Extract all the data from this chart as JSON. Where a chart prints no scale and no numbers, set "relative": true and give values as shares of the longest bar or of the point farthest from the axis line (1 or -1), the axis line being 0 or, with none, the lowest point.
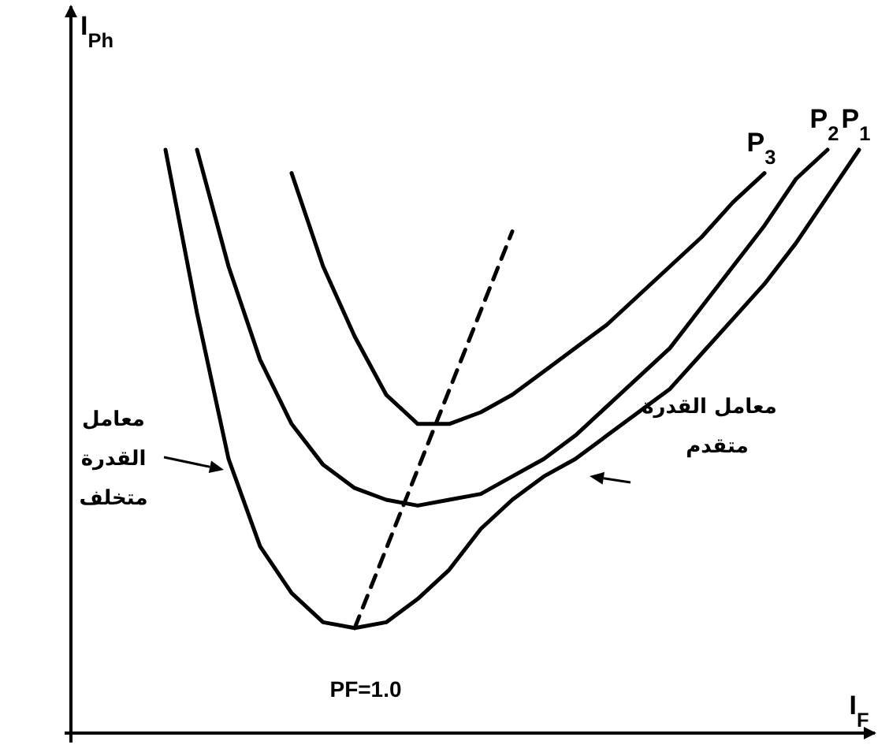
{
  "chart_data": {
    "type": "line",
    "relative": true,
    "marker": "none",
    "xlabel": "I$_{F}$",
    "ylabel": "I$_{Ph}$",
    "categories": [
      null,
      null,
      null,
      null,
      null,
      null,
      null,
      null,
      null,
      null,
      null,
      null,
      null,
      null,
      null,
      null,
      null,
      null,
      null,
      null,
      null,
      null,
      null,
      null,
      null,
      null
    ],
    "series": [
      {
        "name": "P$_{1}$",
        "color": "#000000",
        "line_style": "solid",
        "values": [
          null,
          null,
          null,
          1.0,
          0.72,
          0.47,
          0.32,
          0.24,
          0.19,
          0.18,
          0.19,
          0.23,
          0.28,
          0.35,
          0.4,
          0.44,
          0.47,
          0.51,
          0.55,
          0.59,
          0.65,
          0.71,
          0.77,
          0.84,
          0.92,
          1.0
        ]
      },
      {
        "name": "P$_{2}$",
        "color": "#000000",
        "line_style": "solid",
        "values": [
          null,
          null,
          null,
          null,
          1.0,
          0.8,
          0.64,
          0.53,
          0.46,
          0.42,
          0.4,
          0.39,
          0.4,
          0.41,
          0.44,
          0.47,
          0.51,
          0.56,
          0.61,
          0.66,
          0.73,
          0.8,
          0.87,
          0.95,
          1.0,
          null
        ]
      },
      {
        "name": "P$_{3}$",
        "color": "#000000",
        "line_style": "solid",
        "values": [
          null,
          null,
          null,
          null,
          null,
          null,
          null,
          0.96,
          0.8,
          0.68,
          0.58,
          0.53,
          0.53,
          0.55,
          0.58,
          0.62,
          0.66,
          0.7,
          0.75,
          0.8,
          0.85,
          0.91,
          0.96,
          null,
          null,
          null
        ]
      },
      {
        "color": "#000000",
        "line_style": "dashed",
        "values": [
          null,
          null,
          null,
          null,
          null,
          null,
          null,
          null,
          null,
          0.18,
          null,
          null,
          null,
          null,
          0.86,
          null,
          null,
          null,
          null,
          null,
          null,
          null,
          null,
          null,
          null,
          null
        ]
      }
    ],
    "annotations": [
      "PF=1.0",
      "معامل",
      "القدرة",
      "متخلف",
      "معامل القدرة",
      "متقدم"
    ]
  }
}
